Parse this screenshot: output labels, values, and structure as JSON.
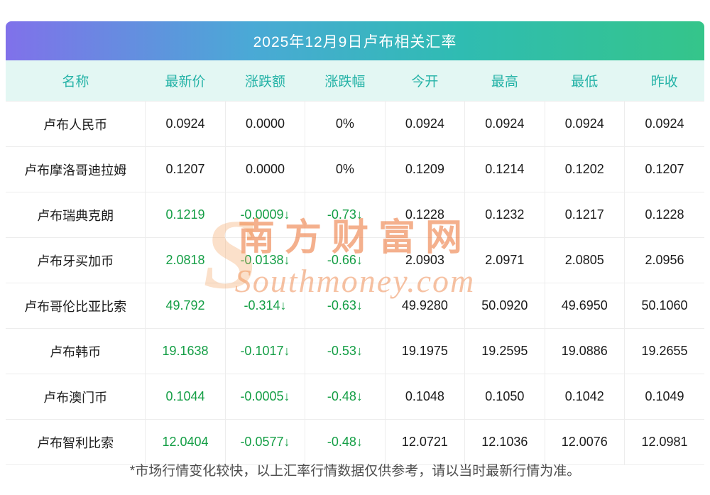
{
  "chart_data": {
    "type": "table",
    "title": "2025年12月9日卢布相关汇率",
    "columns": [
      "名称",
      "最新价",
      "涨跌额",
      "涨跌幅",
      "今开",
      "最高",
      "最低",
      "昨收"
    ],
    "rows": [
      {
        "name": "卢布人民币",
        "trend": "flat",
        "values": [
          "0.0924",
          "0.0000",
          "0%",
          "0.0924",
          "0.0924",
          "0.0924",
          "0.0924"
        ]
      },
      {
        "name": "卢布摩洛哥迪拉姆",
        "trend": "flat",
        "values": [
          "0.1207",
          "0.0000",
          "0%",
          "0.1209",
          "0.1214",
          "0.1202",
          "0.1207"
        ]
      },
      {
        "name": "卢布瑞典克朗",
        "trend": "down",
        "values": [
          "0.1219",
          "-0.0009↓",
          "-0.73↓",
          "0.1228",
          "0.1232",
          "0.1217",
          "0.1228"
        ]
      },
      {
        "name": "卢布牙买加币",
        "trend": "down",
        "values": [
          "2.0818",
          "-0.0138↓",
          "-0.66↓",
          "2.0903",
          "2.0971",
          "2.0805",
          "2.0956"
        ]
      },
      {
        "name": "卢布哥伦比亚比索",
        "trend": "down",
        "values": [
          "49.792",
          "-0.314↓",
          "-0.63↓",
          "49.9280",
          "50.0920",
          "49.6950",
          "50.1060"
        ]
      },
      {
        "name": "卢布韩币",
        "trend": "down",
        "values": [
          "19.1638",
          "-0.1017↓",
          "-0.53↓",
          "19.1975",
          "19.2595",
          "19.0886",
          "19.2655"
        ]
      },
      {
        "name": "卢布澳门币",
        "trend": "down",
        "values": [
          "0.1044",
          "-0.0005↓",
          "-0.48↓",
          "0.1048",
          "0.1050",
          "0.1042",
          "0.1049"
        ]
      },
      {
        "name": "卢布智利比索",
        "trend": "down",
        "values": [
          "12.0404",
          "-0.0577↓",
          "-0.48↓",
          "12.0721",
          "12.1036",
          "12.0076",
          "12.0981"
        ]
      }
    ]
  },
  "watermark": {
    "letter": "S",
    "brand": "南方财富网",
    "domain": "Southmoney.com"
  },
  "footer": "*市场行情变化较快，以上汇率行情数据仅供参考，请以当时最新行情为准。",
  "colors": {
    "title_gradient_left": "#8071ea",
    "title_gradient_right": "#35c58a",
    "header_bg": "#e3f7f3",
    "header_text": "#25b3a7",
    "down_green": "#149e45",
    "watermark_orange": "#eb7030",
    "body_text": "#1b1b1b"
  }
}
